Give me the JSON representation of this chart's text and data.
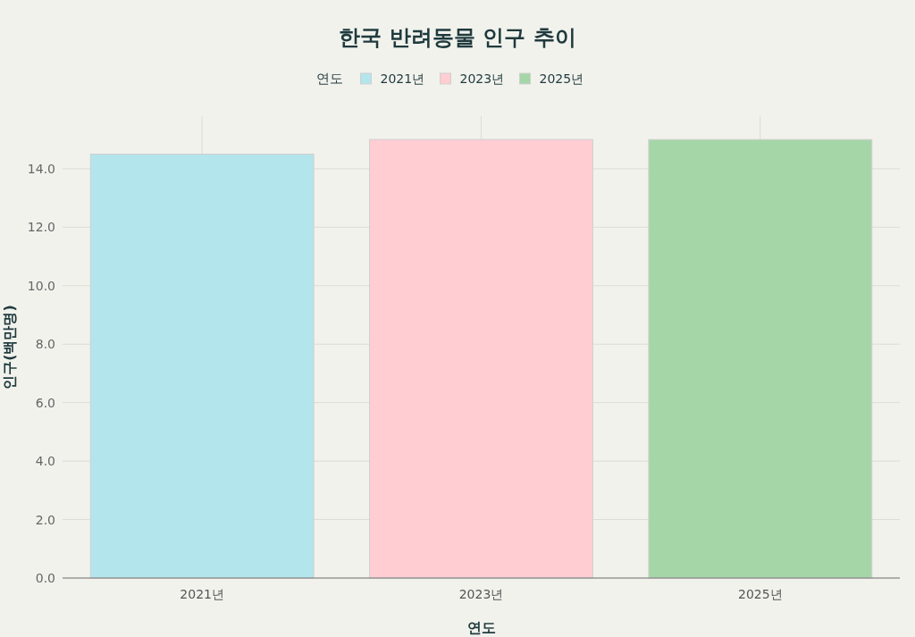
{
  "chart_data": {
    "type": "bar",
    "title": "한국 반려동물 인구 추이",
    "xlabel": "연도",
    "ylabel": "인구(백만명)",
    "legend_title": "연도",
    "categories": [
      "2021년",
      "2023년",
      "2025년"
    ],
    "series": [
      {
        "name": "2021년",
        "color": "#b3e5ec",
        "values": [
          14.5,
          null,
          null
        ]
      },
      {
        "name": "2023년",
        "color": "#ffcdd2",
        "values": [
          null,
          15.0,
          null
        ]
      },
      {
        "name": "2025년",
        "color": "#a5d6a7",
        "values": [
          null,
          null,
          15.0
        ]
      }
    ],
    "ylim": [
      0,
      15.8
    ],
    "yticks": [
      {
        "value": 0,
        "label": "0.0"
      },
      {
        "value": 2,
        "label": "2.0"
      },
      {
        "value": 4,
        "label": "4.0"
      },
      {
        "value": 6,
        "label": "6.0"
      },
      {
        "value": 8,
        "label": "8.0"
      },
      {
        "value": 10,
        "label": "10.0"
      },
      {
        "value": 12,
        "label": "12.0"
      },
      {
        "value": 14,
        "label": "14.0"
      }
    ],
    "grid": true,
    "legend": "top"
  }
}
